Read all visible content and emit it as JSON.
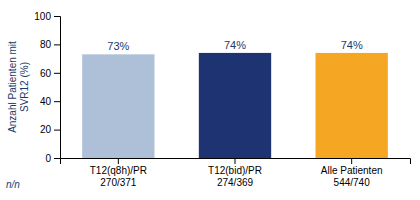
{
  "chart_data": {
    "type": "bar",
    "categories": [
      "T12(q8h)/PR\n270/371",
      "T12(bid)/PR\n274/369",
      "Alle Patienten\n544/740"
    ],
    "values": [
      73,
      74,
      74
    ],
    "value_labels": [
      "73%",
      "74%",
      "74%"
    ],
    "colors": [
      "#aec0d8",
      "#1e3372",
      "#f5a623"
    ],
    "ylabel": "Anzahl Patienten mit\nSVR12 (%)",
    "annotations": [
      "n/n"
    ],
    "ylim": [
      0,
      100
    ],
    "yticks": [
      0,
      20,
      40,
      60,
      80,
      100
    ],
    "data_labels": true,
    "grid": false
  }
}
